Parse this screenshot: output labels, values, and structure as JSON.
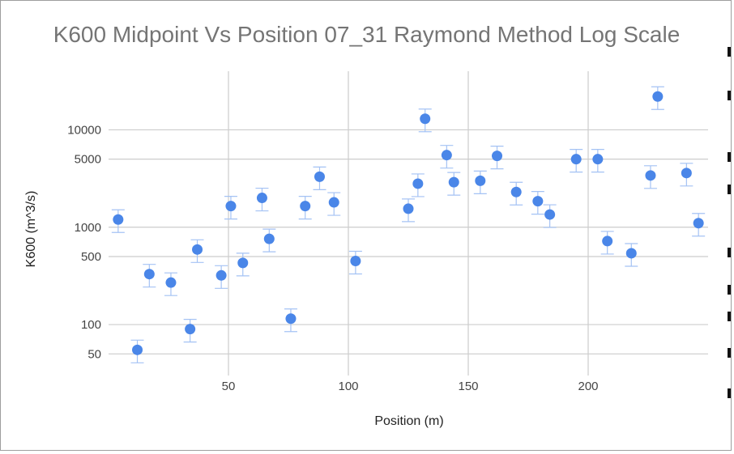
{
  "colors": {
    "point": "#4a86e8",
    "error_bar": "#a4c2f4",
    "grid": "#cccccc",
    "title": "#757575"
  },
  "chart_data": {
    "type": "scatter",
    "title": "K600 Midpoint Vs Position 07_31 Raymond Method Log Scale",
    "xlabel": "Position (m)",
    "ylabel": "K600 (m^3/s)",
    "xlim": [
      0,
      250
    ],
    "ylim": [
      30,
      40000
    ],
    "yscale": "log",
    "x_ticks": [
      50,
      100,
      150,
      200
    ],
    "y_ticks": [
      50,
      100,
      500,
      1000,
      5000,
      10000
    ],
    "grid": true,
    "legend": "none",
    "error_bars": true,
    "points": [
      {
        "x": 4,
        "y": 1200
      },
      {
        "x": 12,
        "y": 55
      },
      {
        "x": 17,
        "y": 330
      },
      {
        "x": 26,
        "y": 270
      },
      {
        "x": 34,
        "y": 90
      },
      {
        "x": 37,
        "y": 590
      },
      {
        "x": 47,
        "y": 320
      },
      {
        "x": 51,
        "y": 1650
      },
      {
        "x": 56,
        "y": 430
      },
      {
        "x": 64,
        "y": 2000
      },
      {
        "x": 67,
        "y": 760
      },
      {
        "x": 76,
        "y": 115
      },
      {
        "x": 82,
        "y": 1650
      },
      {
        "x": 88,
        "y": 3300
      },
      {
        "x": 94,
        "y": 1800
      },
      {
        "x": 103,
        "y": 450
      },
      {
        "x": 125,
        "y": 1550
      },
      {
        "x": 129,
        "y": 2800
      },
      {
        "x": 132,
        "y": 13000
      },
      {
        "x": 141,
        "y": 5500
      },
      {
        "x": 144,
        "y": 2900
      },
      {
        "x": 155,
        "y": 3000
      },
      {
        "x": 162,
        "y": 5400
      },
      {
        "x": 170,
        "y": 2300
      },
      {
        "x": 179,
        "y": 1850
      },
      {
        "x": 184,
        "y": 1350
      },
      {
        "x": 195,
        "y": 5000
      },
      {
        "x": 204,
        "y": 5000
      },
      {
        "x": 208,
        "y": 720
      },
      {
        "x": 218,
        "y": 540
      },
      {
        "x": 226,
        "y": 3400
      },
      {
        "x": 229,
        "y": 22000
      },
      {
        "x": 241,
        "y": 3600
      },
      {
        "x": 246,
        "y": 1100
      }
    ]
  }
}
